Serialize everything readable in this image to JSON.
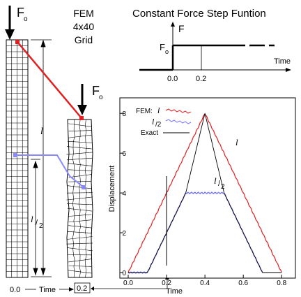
{
  "figure": {
    "left_force_label": "F",
    "left_force_sub": "o",
    "fem_label_line1": "FEM",
    "fem_label_line2": "4x40",
    "fem_label_line3": "Grid",
    "right_force_label": "F",
    "right_force_sub": "o",
    "length_label": "l",
    "half_length_num": "l",
    "half_length_den": "2",
    "time_axis_start": "0.0",
    "time_axis_label": "Time",
    "time_axis_end": "0.2"
  },
  "step_function": {
    "title": "Constant Force Step Funtion",
    "y_label": "F",
    "force_label": "F",
    "force_sub": "o",
    "x_label": "Time",
    "tick_0": "0.0",
    "tick_1": "0.2"
  },
  "colors": {
    "fem_full": "#e02020",
    "fem_half": "#7777ff",
    "exact": "#000000",
    "red_marker": "#e02020",
    "blue_marker": "#8888ff"
  },
  "chart_data": {
    "type": "line",
    "xlabel": "Time",
    "ylabel": "Displacement",
    "xlim": [
      0.0,
      0.85
    ],
    "ylim": [
      0,
      8.5
    ],
    "xticks": [
      "0.0",
      "0.2",
      "0.4",
      "0.6",
      "0.8"
    ],
    "yticks": [
      "0",
      "2",
      "4",
      "6",
      "8"
    ],
    "legend": {
      "title": "FEM:",
      "entries": [
        {
          "label": "l",
          "style": "FEM full length (red)"
        },
        {
          "label": "l/2",
          "style": "FEM half length (blue)"
        },
        {
          "label": "Exact",
          "style": "exact (black)"
        }
      ]
    },
    "annotation_full": "l",
    "annotation_half_num": "l",
    "annotation_half_den": "2",
    "marker_line_x": 0.2,
    "series": [
      {
        "name": "l",
        "x": [
          0.0,
          0.4,
          0.8
        ],
        "values": [
          0.0,
          8.0,
          0.0
        ]
      },
      {
        "name": "l/2",
        "x": [
          0.0,
          0.1,
          0.3,
          0.5,
          0.7
        ],
        "values": [
          0.0,
          0.0,
          4.0,
          4.0,
          0.0
        ]
      },
      {
        "name": "Exact",
        "x": [
          0.0,
          0.1,
          0.3,
          0.4,
          0.5,
          0.7,
          0.8
        ],
        "values": [
          0.0,
          0.0,
          4.0,
          8.0,
          4.0,
          0.0,
          0.0
        ]
      }
    ]
  }
}
